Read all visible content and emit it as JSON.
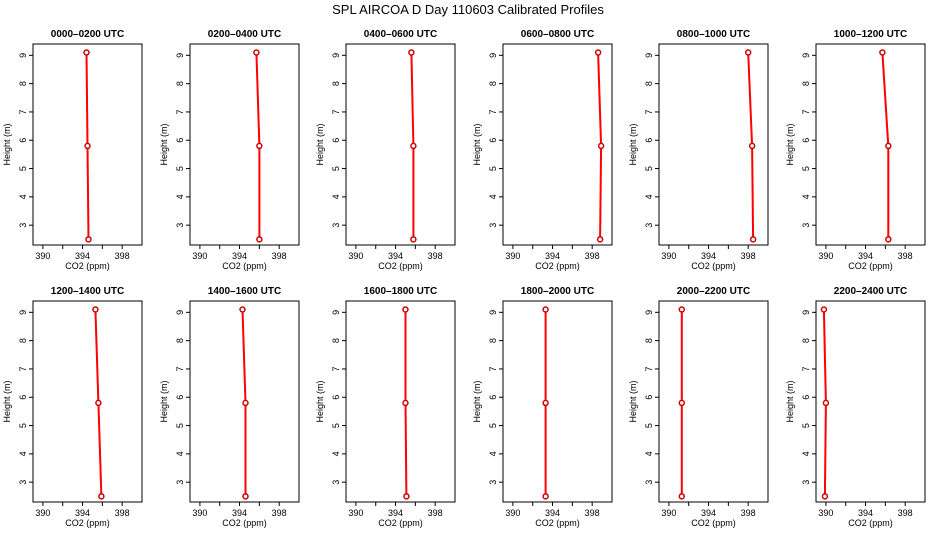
{
  "figure": {
    "title": "SPL AIRCOA D  Day 110603  Calibrated Profiles",
    "xlabel": "CO2 (ppm)",
    "ylabel": "Height (m)",
    "xticks": [
      "390",
      "394",
      "398"
    ],
    "yticks": [
      "3",
      "4",
      "5",
      "6",
      "7",
      "8",
      "9"
    ],
    "line_color": "#ff0000",
    "marker_color": "#cc0000"
  },
  "chart_data": [
    {
      "type": "line",
      "title": "0000–0200 UTC",
      "xlabel": "CO2 (ppm)",
      "ylabel": "Height (m)",
      "xlim": [
        389,
        400
      ],
      "ylim": [
        2.3,
        9.4
      ],
      "series": [
        {
          "x": [
            394.6,
            394.5,
            394.4
          ],
          "y": [
            2.5,
            5.8,
            9.1
          ]
        }
      ]
    },
    {
      "type": "line",
      "title": "0200–0400 UTC",
      "xlabel": "CO2 (ppm)",
      "ylabel": "Height (m)",
      "xlim": [
        389,
        400
      ],
      "ylim": [
        2.3,
        9.4
      ],
      "series": [
        {
          "x": [
            396.0,
            396.0,
            395.7
          ],
          "y": [
            2.5,
            5.8,
            9.1
          ]
        }
      ]
    },
    {
      "type": "line",
      "title": "0400–0600 UTC",
      "xlabel": "CO2 (ppm)",
      "ylabel": "Height (m)",
      "xlim": [
        389,
        400
      ],
      "ylim": [
        2.3,
        9.4
      ],
      "series": [
        {
          "x": [
            395.8,
            395.8,
            395.6
          ],
          "y": [
            2.5,
            5.8,
            9.1
          ]
        }
      ]
    },
    {
      "type": "line",
      "title": "0600–0800 UTC",
      "xlabel": "CO2 (ppm)",
      "ylabel": "Height (m)",
      "xlim": [
        389,
        400
      ],
      "ylim": [
        2.3,
        9.4
      ],
      "series": [
        {
          "x": [
            398.8,
            398.9,
            398.6
          ],
          "y": [
            2.5,
            5.8,
            9.1
          ]
        }
      ]
    },
    {
      "type": "line",
      "title": "0800–1000 UTC",
      "xlabel": "CO2 (ppm)",
      "ylabel": "Height (m)",
      "xlim": [
        389,
        400
      ],
      "ylim": [
        2.3,
        9.4
      ],
      "series": [
        {
          "x": [
            398.5,
            398.4,
            398.0
          ],
          "y": [
            2.5,
            5.8,
            9.1
          ]
        }
      ]
    },
    {
      "type": "line",
      "title": "1000–1200 UTC",
      "xlabel": "CO2 (ppm)",
      "ylabel": "Height (m)",
      "xlim": [
        389,
        400
      ],
      "ylim": [
        2.3,
        9.4
      ],
      "series": [
        {
          "x": [
            396.3,
            396.3,
            395.7
          ],
          "y": [
            2.5,
            5.8,
            9.1
          ]
        }
      ]
    },
    {
      "type": "line",
      "title": "1200–1400 UTC",
      "xlabel": "CO2 (ppm)",
      "ylabel": "Height (m)",
      "xlim": [
        389,
        400
      ],
      "ylim": [
        2.3,
        9.4
      ],
      "series": [
        {
          "x": [
            395.9,
            395.6,
            395.3
          ],
          "y": [
            2.5,
            5.8,
            9.1
          ]
        }
      ]
    },
    {
      "type": "line",
      "title": "1400–1600 UTC",
      "xlabel": "CO2 (ppm)",
      "ylabel": "Height (m)",
      "xlim": [
        389,
        400
      ],
      "ylim": [
        2.3,
        9.4
      ],
      "series": [
        {
          "x": [
            394.6,
            394.6,
            394.3
          ],
          "y": [
            2.5,
            5.8,
            9.1
          ]
        }
      ]
    },
    {
      "type": "line",
      "title": "1600–1800 UTC",
      "xlabel": "CO2 (ppm)",
      "ylabel": "Height (m)",
      "xlim": [
        389,
        400
      ],
      "ylim": [
        2.3,
        9.4
      ],
      "series": [
        {
          "x": [
            395.1,
            395.0,
            395.0
          ],
          "y": [
            2.5,
            5.8,
            9.1
          ]
        }
      ]
    },
    {
      "type": "line",
      "title": "1800–2000 UTC",
      "xlabel": "CO2 (ppm)",
      "ylabel": "Height (m)",
      "xlim": [
        389,
        400
      ],
      "ylim": [
        2.3,
        9.4
      ],
      "series": [
        {
          "x": [
            393.3,
            393.3,
            393.3
          ],
          "y": [
            2.5,
            5.8,
            9.1
          ]
        }
      ]
    },
    {
      "type": "line",
      "title": "2000–2200 UTC",
      "xlabel": "CO2 (ppm)",
      "ylabel": "Height (m)",
      "xlim": [
        389,
        400
      ],
      "ylim": [
        2.3,
        9.4
      ],
      "series": [
        {
          "x": [
            391.3,
            391.3,
            391.3
          ],
          "y": [
            2.5,
            5.8,
            9.1
          ]
        }
      ]
    },
    {
      "type": "line",
      "title": "2200–2400 UTC",
      "xlabel": "CO2 (ppm)",
      "ylabel": "Height (m)",
      "xlim": [
        389,
        400
      ],
      "ylim": [
        2.3,
        9.4
      ],
      "series": [
        {
          "x": [
            389.9,
            390.0,
            389.8
          ],
          "y": [
            2.5,
            5.8,
            9.1
          ]
        }
      ]
    }
  ]
}
